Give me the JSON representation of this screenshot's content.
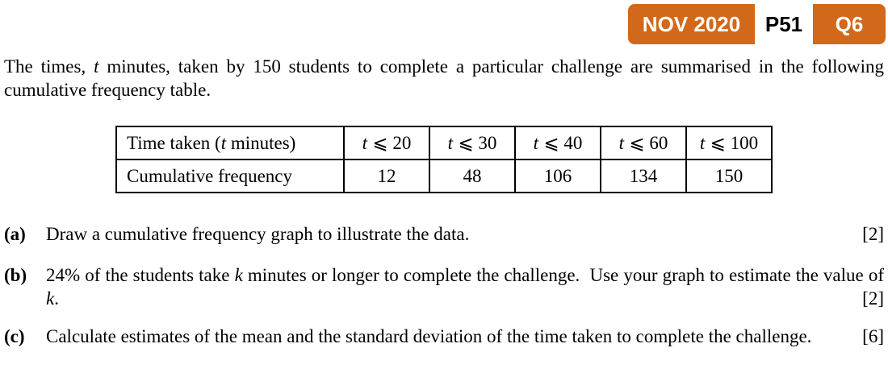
{
  "badge": {
    "session": "NOV 2020",
    "paper": "P51",
    "question": "Q6",
    "orange": "#d2691a"
  },
  "intro": {
    "part1": "The times, ",
    "var1": "t",
    "part2": " minutes, taken by 150 students to complete a particular challenge are summarised in the following cumulative frequency table."
  },
  "table": {
    "var": "t",
    "header": {
      "label_part1": "Time taken (",
      "label_var": "t",
      "label_part2": " minutes)"
    },
    "row_label": "Cumulative frequency",
    "columns": [
      {
        "constraint": "⩽ 20",
        "value": "12"
      },
      {
        "constraint": "⩽ 30",
        "value": "48"
      },
      {
        "constraint": "⩽ 40",
        "value": "106"
      },
      {
        "constraint": "⩽ 60",
        "value": "134"
      },
      {
        "constraint": "⩽ 100",
        "value": "150"
      }
    ]
  },
  "questions": [
    {
      "label": "(a)",
      "text": "Draw a cumulative frequency graph to illustrate the data.",
      "marks": "[2]"
    },
    {
      "label": "(b)",
      "part1": "24% of the students take ",
      "var1": "k",
      "part2": " minutes or longer to complete the challenge.  Use your graph to estimate the value of ",
      "var2": "k",
      "part3": ".",
      "marks": "[2]"
    },
    {
      "label": "(c)",
      "text": "Calculate estimates of the mean and the standard deviation of the time taken to complete the challenge.",
      "marks": "[6]"
    }
  ]
}
